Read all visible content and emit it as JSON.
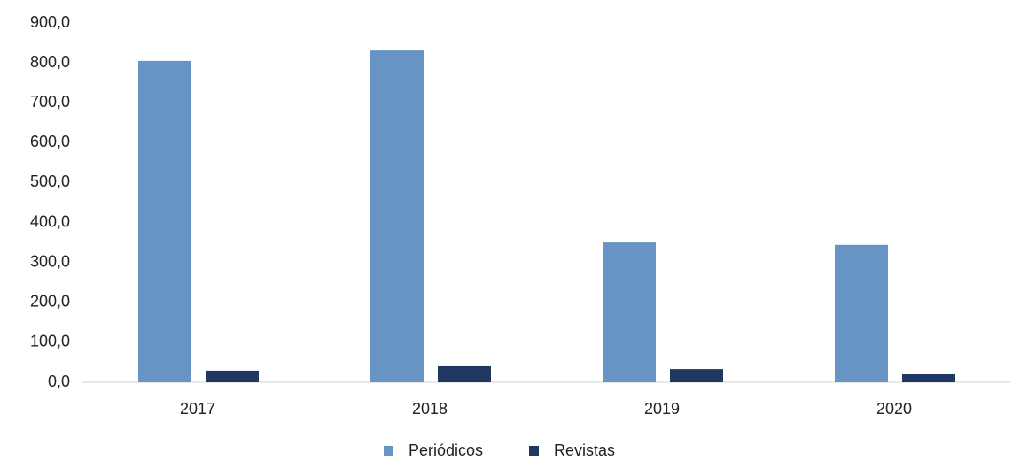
{
  "chart_data": {
    "type": "bar",
    "categories": [
      "2017",
      "2018",
      "2019",
      "2020"
    ],
    "series": [
      {
        "name": "Periódicos",
        "color": "#6794c4",
        "values": [
          805,
          831,
          350,
          344
        ]
      },
      {
        "name": "Revistas",
        "color": "#1f3761",
        "values": [
          29,
          40,
          33,
          20
        ]
      }
    ],
    "ylim": [
      0,
      900
    ],
    "yticks": [
      {
        "value": 0,
        "label": "0,0"
      },
      {
        "value": 100,
        "label": "100,0"
      },
      {
        "value": 200,
        "label": "200,0"
      },
      {
        "value": 300,
        "label": "300,0"
      },
      {
        "value": 400,
        "label": "400,0"
      },
      {
        "value": 500,
        "label": "500,0"
      },
      {
        "value": 600,
        "label": "600,0"
      },
      {
        "value": 700,
        "label": "700,0"
      },
      {
        "value": 800,
        "label": "800,0"
      },
      {
        "value": 900,
        "label": "900,0"
      }
    ],
    "grid": false,
    "legend": "bottom"
  }
}
